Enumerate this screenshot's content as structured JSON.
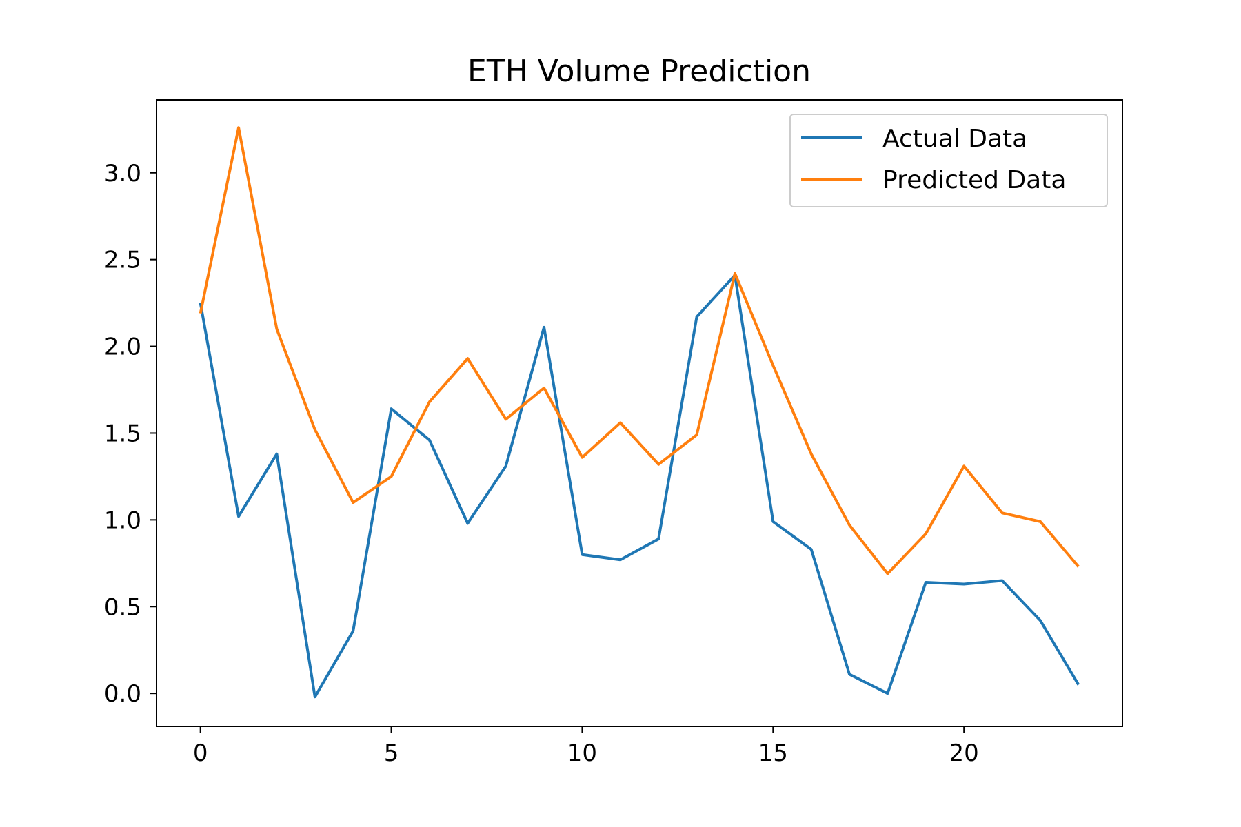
{
  "chart_data": {
    "type": "line",
    "title": "ETH Volume Prediction",
    "xlabel": "",
    "ylabel": "",
    "xlim": [
      -1.15,
      24.15
    ],
    "ylim": [
      -0.19,
      3.42
    ],
    "xticks": [
      0,
      5,
      10,
      15,
      20
    ],
    "xtick_labels": [
      "0",
      "5",
      "10",
      "15",
      "20"
    ],
    "yticks": [
      0.0,
      0.5,
      1.0,
      1.5,
      2.0,
      2.5,
      3.0
    ],
    "ytick_labels": [
      "0.0",
      "0.5",
      "1.0",
      "1.5",
      "2.0",
      "2.5",
      "3.0"
    ],
    "grid": false,
    "legend_position": "top-right",
    "x": [
      0,
      1,
      2,
      3,
      4,
      5,
      6,
      7,
      8,
      9,
      10,
      11,
      12,
      13,
      14,
      15,
      16,
      17,
      18,
      19,
      20,
      21,
      22,
      23
    ],
    "series": [
      {
        "name": "Actual Data",
        "color": "#1f77b4",
        "values": [
          2.25,
          1.02,
          1.38,
          -0.02,
          0.36,
          1.64,
          1.46,
          0.98,
          1.31,
          2.11,
          0.8,
          0.77,
          0.89,
          2.17,
          2.41,
          0.99,
          0.83,
          0.11,
          0.0,
          0.64,
          0.63,
          0.65,
          0.42,
          0.05
        ]
      },
      {
        "name": "Predicted Data",
        "color": "#ff7f0e",
        "values": [
          2.19,
          3.26,
          2.1,
          1.52,
          1.1,
          1.25,
          1.68,
          1.93,
          1.58,
          1.76,
          1.36,
          1.56,
          1.32,
          1.49,
          2.42,
          1.89,
          1.38,
          0.97,
          0.69,
          0.92,
          1.31,
          1.04,
          0.99,
          0.73
        ]
      }
    ]
  }
}
